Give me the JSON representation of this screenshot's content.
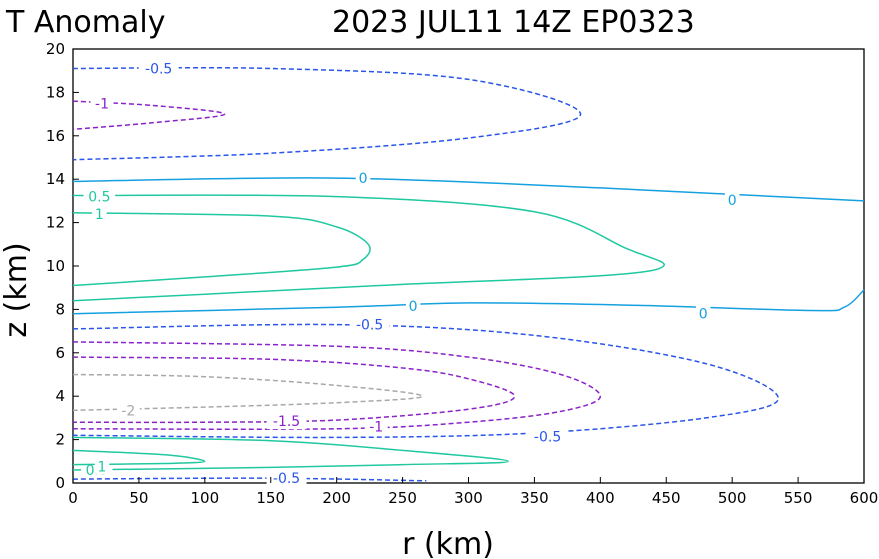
{
  "chart_data": {
    "type": "contour",
    "title_left": "T Anomaly",
    "title_right": "2023 JUL11 14Z   EP0323",
    "xlabel": "r (km)",
    "ylabel": "z (km)",
    "xlim": [
      0,
      600
    ],
    "ylim": [
      0,
      20
    ],
    "xticks": [
      "0",
      "50",
      "100",
      "150",
      "200",
      "250",
      "300",
      "350",
      "400",
      "450",
      "500",
      "550",
      "600"
    ],
    "yticks": [
      "0",
      "2",
      "4",
      "6",
      "8",
      "10",
      "12",
      "14",
      "16",
      "18",
      "20"
    ],
    "grid": false,
    "contours": [
      {
        "level": "-0.5",
        "color": "#2a55e8",
        "dashed": true,
        "path": [
          [
            0,
            19.1
          ],
          [
            150,
            19.1
          ],
          [
            300,
            18.6
          ],
          [
            385,
            17.0
          ],
          [
            300,
            15.9
          ],
          [
            150,
            15.2
          ],
          [
            0,
            14.9
          ]
        ],
        "labels": [
          [
            65,
            19.1
          ]
        ]
      },
      {
        "level": "-1",
        "color": "#8a22c8",
        "dashed": true,
        "path": [
          [
            0,
            17.6
          ],
          [
            60,
            17.4
          ],
          [
            115,
            17.0
          ],
          [
            60,
            16.6
          ],
          [
            0,
            16.3
          ]
        ],
        "labels": [
          [
            22,
            17.5
          ]
        ]
      },
      {
        "level": "0",
        "color": "#15a0e0",
        "dashed": false,
        "path": [
          [
            0,
            13.9
          ],
          [
            200,
            14.05
          ],
          [
            400,
            13.6
          ],
          [
            550,
            13.15
          ],
          [
            600,
            13.0
          ]
        ],
        "labels": [
          [
            220,
            14.05
          ],
          [
            500,
            13.05
          ]
        ]
      },
      {
        "level": "0.5",
        "color": "#20c8a0",
        "dashed": false,
        "path": [
          [
            0,
            13.25
          ],
          [
            200,
            13.2
          ],
          [
            350,
            12.5
          ],
          [
            420,
            10.8
          ],
          [
            448,
            10.0
          ],
          [
            400,
            9.55
          ],
          [
            250,
            9.15
          ],
          [
            100,
            8.7
          ],
          [
            0,
            8.4
          ]
        ],
        "labels": [
          [
            20,
            13.2
          ]
        ]
      },
      {
        "level": "1",
        "color": "#20c8a0",
        "dashed": false,
        "path": [
          [
            0,
            12.45
          ],
          [
            150,
            12.3
          ],
          [
            200,
            11.8
          ],
          [
            224,
            11.0
          ],
          [
            220,
            10.3
          ],
          [
            200,
            9.95
          ],
          [
            100,
            9.5
          ],
          [
            0,
            9.1
          ]
        ],
        "labels": [
          [
            20,
            12.4
          ]
        ]
      },
      {
        "level": "0",
        "color": "#15a0e0",
        "dashed": false,
        "path": [
          [
            0,
            7.8
          ],
          [
            200,
            8.1
          ],
          [
            300,
            8.3
          ],
          [
            420,
            8.2
          ],
          [
            560,
            7.95
          ],
          [
            585,
            8.1
          ],
          [
            600,
            8.9
          ]
        ],
        "labels": [
          [
            258,
            8.15
          ],
          [
            478,
            7.8
          ]
        ]
      },
      {
        "level": "-0.5",
        "color": "#2a55e8",
        "dashed": true,
        "path": [
          [
            0,
            7.1
          ],
          [
            200,
            7.3
          ],
          [
            350,
            6.8
          ],
          [
            480,
            5.5
          ],
          [
            535,
            3.9
          ],
          [
            480,
            3.0
          ],
          [
            350,
            2.3
          ],
          [
            200,
            2.1
          ],
          [
            0,
            2.2
          ]
        ],
        "labels": [
          [
            225,
            7.3
          ],
          [
            360,
            2.15
          ]
        ]
      },
      {
        "level": "-1",
        "color": "#8a22c8",
        "dashed": true,
        "path": [
          [
            0,
            6.5
          ],
          [
            200,
            6.3
          ],
          [
            300,
            5.8
          ],
          [
            370,
            5.0
          ],
          [
            400,
            4.0
          ],
          [
            370,
            3.3
          ],
          [
            300,
            2.8
          ],
          [
            200,
            2.5
          ],
          [
            0,
            2.5
          ]
        ],
        "labels": [
          [
            230,
            2.6
          ]
        ]
      },
      {
        "level": "-1.5",
        "color": "#8a22c8",
        "dashed": true,
        "path": [
          [
            0,
            5.8
          ],
          [
            150,
            5.7
          ],
          [
            250,
            5.3
          ],
          [
            300,
            4.8
          ],
          [
            335,
            4.0
          ],
          [
            300,
            3.4
          ],
          [
            200,
            2.9
          ],
          [
            100,
            2.8
          ],
          [
            0,
            2.8
          ]
        ],
        "labels": [
          [
            162,
            2.85
          ]
        ]
      },
      {
        "level": "-2",
        "color": "#a8a8a8",
        "dashed": true,
        "path": [
          [
            0,
            5.0
          ],
          [
            100,
            4.9
          ],
          [
            200,
            4.5
          ],
          [
            265,
            4.0
          ],
          [
            200,
            3.7
          ],
          [
            100,
            3.5
          ],
          [
            0,
            3.35
          ]
        ],
        "labels": [
          [
            42,
            3.35
          ]
        ]
      },
      {
        "level": "0.5",
        "color": "#20c8a0",
        "dashed": false,
        "path": [
          [
            0,
            2.1
          ],
          [
            150,
            1.95
          ],
          [
            250,
            1.5
          ],
          [
            330,
            1.0
          ],
          [
            250,
            0.85
          ],
          [
            150,
            0.72
          ],
          [
            0,
            0.6
          ]
        ],
        "labels": [
          [
            18,
            0.6
          ]
        ]
      },
      {
        "level": "1",
        "color": "#20c8a0",
        "dashed": false,
        "path": [
          [
            0,
            1.5
          ],
          [
            70,
            1.3
          ],
          [
            100,
            1.0
          ],
          [
            70,
            0.9
          ],
          [
            0,
            0.85
          ]
        ],
        "labels": [
          [
            22,
            0.75
          ]
        ]
      },
      {
        "level": "-0.5",
        "color": "#2a55e8",
        "dashed": true,
        "path": [
          [
            0,
            0.18
          ],
          [
            150,
            0.22
          ],
          [
            268,
            0.1
          ]
        ],
        "labels": [
          [
            162,
            0.22
          ]
        ]
      }
    ]
  }
}
